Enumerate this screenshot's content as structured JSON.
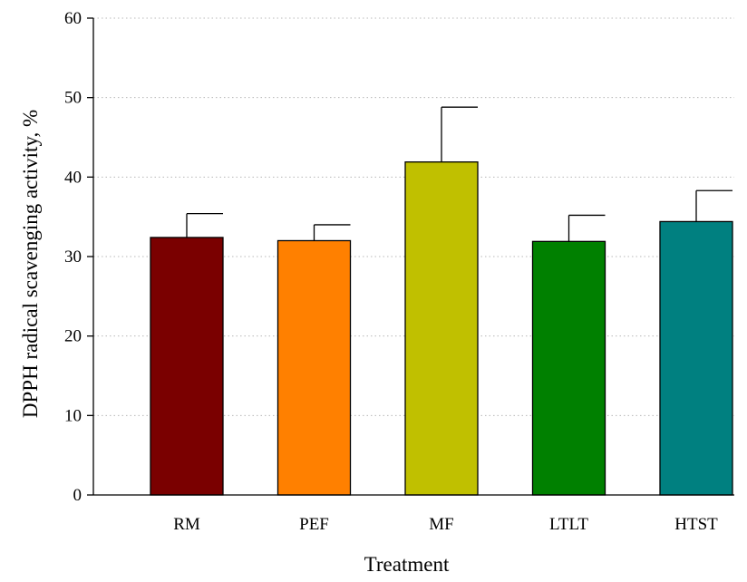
{
  "chart_data": {
    "type": "bar",
    "title": "",
    "xlabel": "Treatment",
    "ylabel": "DPPH radical scavenging activity, %",
    "categories": [
      "RM",
      "PEF",
      "MF",
      "LTLT",
      "HTST"
    ],
    "values": [
      32.4,
      32.0,
      41.9,
      31.9,
      34.4
    ],
    "error_upper": [
      3.0,
      2.0,
      6.9,
      3.3,
      3.9
    ],
    "colors": [
      "#7a0000",
      "#ff8000",
      "#c0c000",
      "#008000",
      "#008080"
    ],
    "ylim": [
      0,
      60
    ],
    "yticks": [
      0,
      10,
      20,
      30,
      40,
      50,
      60
    ],
    "grid": true
  }
}
